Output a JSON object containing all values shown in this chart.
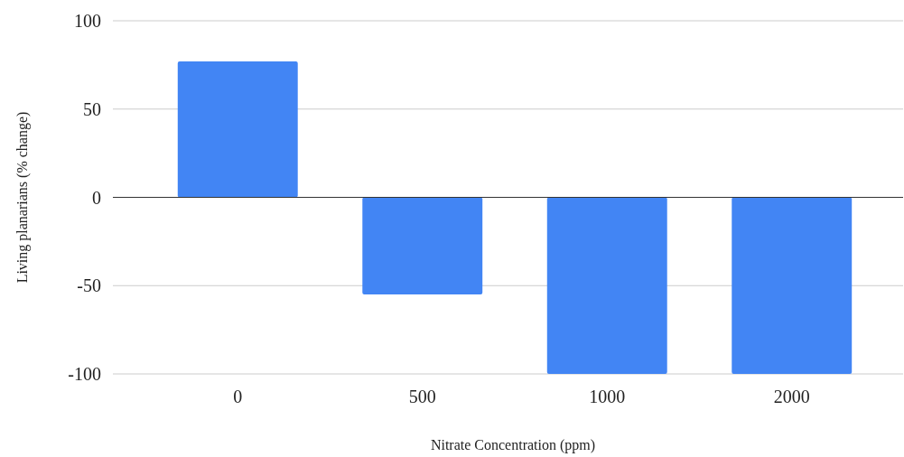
{
  "chart_data": {
    "type": "bar",
    "xlabel": "Nitrate Concentration (ppm)",
    "ylabel": "Living planarians (% change)",
    "categories": [
      "0",
      "500",
      "1000",
      "2000"
    ],
    "values": [
      77,
      -55,
      -100,
      -100
    ],
    "color": "#4285f4",
    "ylim": [
      -100,
      100
    ],
    "yticks": [
      -100,
      -50,
      0,
      50,
      100
    ],
    "grid": "y"
  }
}
